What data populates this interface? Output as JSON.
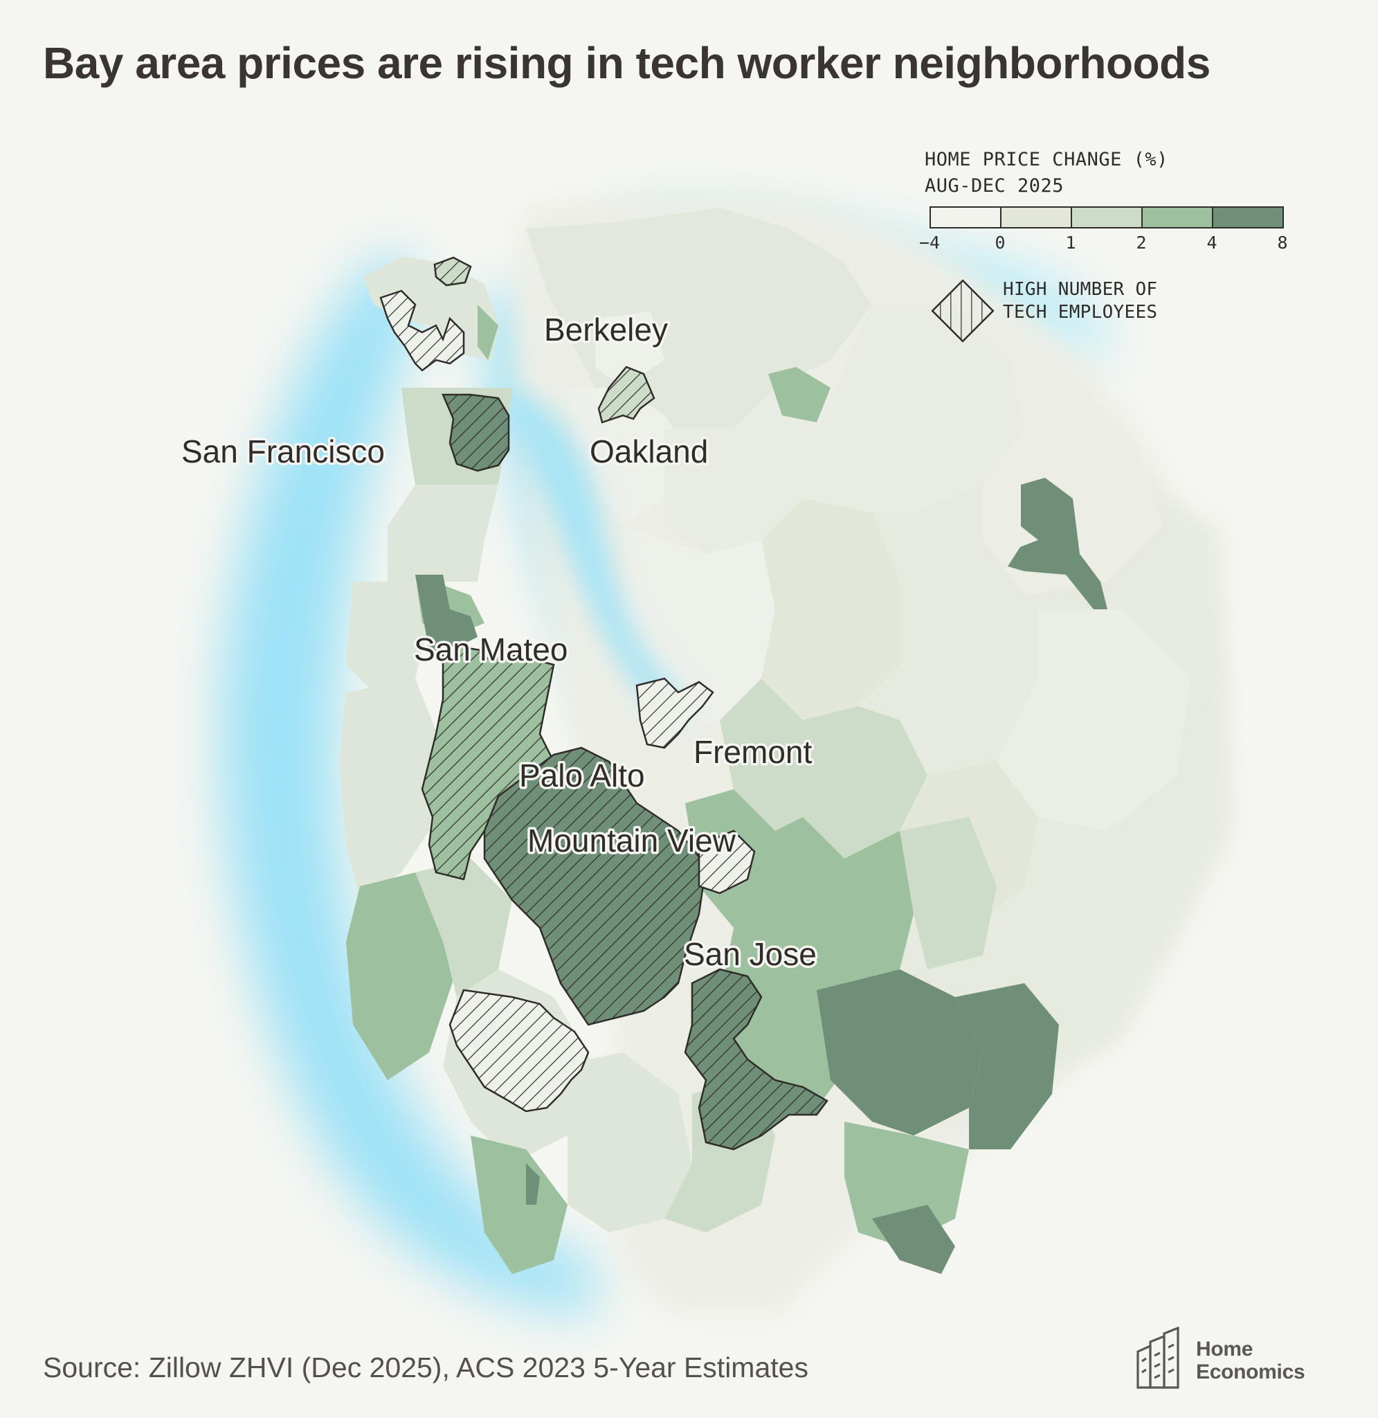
{
  "title": "Bay area prices are rising in tech worker neighborhoods",
  "legend": {
    "title_line1": "HOME PRICE CHANGE (%)",
    "title_line2": "AUG-DEC 2025",
    "breaks": [
      "−4",
      "0",
      "1",
      "2",
      "4",
      "8"
    ],
    "colors": [
      "#f2f3ec",
      "#e2e7da",
      "#cddbc9",
      "#9dc09e",
      "#6f8f78"
    ],
    "hatch_label_line1": "HIGH NUMBER OF",
    "hatch_label_line2": "TECH EMPLOYEES"
  },
  "cities": {
    "san_francisco": "San Francisco",
    "berkeley": "Berkeley",
    "oakland": "Oakland",
    "san_mateo": "San Mateo",
    "fremont": "Fremont",
    "palo_alto": "Palo Alto",
    "mountain_view": "Mountain View",
    "san_jose": "San Jose"
  },
  "source": "Source: Zillow ZHVI (Dec 2025), ACS 2023 5-Year Estimates",
  "logo": {
    "line1": "Home",
    "line2": "Economics"
  },
  "palette": {
    "background": "#f5f6f1",
    "water": "#a8e4f5",
    "hatch_stroke": "#2f2c2a"
  }
}
